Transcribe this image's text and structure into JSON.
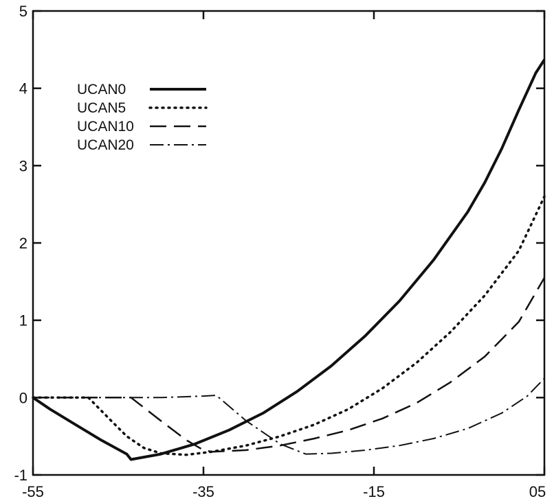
{
  "chart_data": {
    "type": "line",
    "xlim": [
      -55,
      5
    ],
    "ylim": [
      -1,
      5
    ],
    "x_ticks": [
      -55,
      -35,
      -15,
      5
    ],
    "x_tick_labels": [
      "-55",
      "-35",
      "-15",
      "05"
    ],
    "y_ticks": [
      -1,
      0,
      1,
      2,
      3,
      4,
      5
    ],
    "y_tick_labels": [
      "-1",
      "0",
      "1",
      "2",
      "3",
      "4",
      "5"
    ],
    "grid": false,
    "legend_position": "upper-left",
    "series": [
      {
        "name": "UCAN0",
        "style": "solid",
        "x": [
          -55,
          -53,
          -50,
          -47,
          -44,
          -43.5,
          -40,
          -36,
          -32,
          -28,
          -24,
          -20,
          -16,
          -12,
          -8,
          -4,
          -2,
          0,
          2,
          4,
          5
        ],
        "y": [
          0,
          -0.15,
          -0.35,
          -0.55,
          -0.73,
          -0.8,
          -0.73,
          -0.6,
          -0.42,
          -0.2,
          0.08,
          0.41,
          0.8,
          1.25,
          1.78,
          2.4,
          2.78,
          3.22,
          3.72,
          4.2,
          4.37
        ]
      },
      {
        "name": "UCAN5",
        "style": "dotted",
        "x": [
          -55,
          -50,
          -48.5,
          -46,
          -44,
          -42,
          -40,
          -37,
          -34,
          -30,
          -26,
          -22,
          -18,
          -14,
          -10,
          -6,
          -2,
          2,
          5
        ],
        "y": [
          0,
          0,
          0,
          -0.28,
          -0.5,
          -0.65,
          -0.72,
          -0.74,
          -0.7,
          -0.62,
          -0.5,
          -0.35,
          -0.15,
          0.12,
          0.45,
          0.85,
          1.32,
          1.9,
          2.6
        ]
      },
      {
        "name": "UCAN10",
        "style": "dashed",
        "x": [
          -55,
          -46,
          -43.5,
          -40,
          -37,
          -35,
          -34,
          -30,
          -26,
          -22,
          -18,
          -14,
          -10,
          -6,
          -2,
          2,
          5
        ],
        "y": [
          0,
          0,
          0,
          -0.3,
          -0.55,
          -0.68,
          -0.7,
          -0.68,
          -0.62,
          -0.53,
          -0.42,
          -0.27,
          -0.07,
          0.2,
          0.53,
          0.98,
          1.55
        ]
      },
      {
        "name": "UCAN20",
        "style": "dashdot",
        "x": [
          -55,
          -45,
          -40,
          -35,
          -33.5,
          -30,
          -26,
          -23,
          -20,
          -16,
          -12,
          -8,
          -4,
          0,
          3,
          5
        ],
        "y": [
          0,
          0,
          0,
          0.02,
          0.03,
          -0.3,
          -0.6,
          -0.73,
          -0.72,
          -0.68,
          -0.62,
          -0.53,
          -0.4,
          -0.2,
          0.02,
          0.25
        ]
      }
    ]
  }
}
